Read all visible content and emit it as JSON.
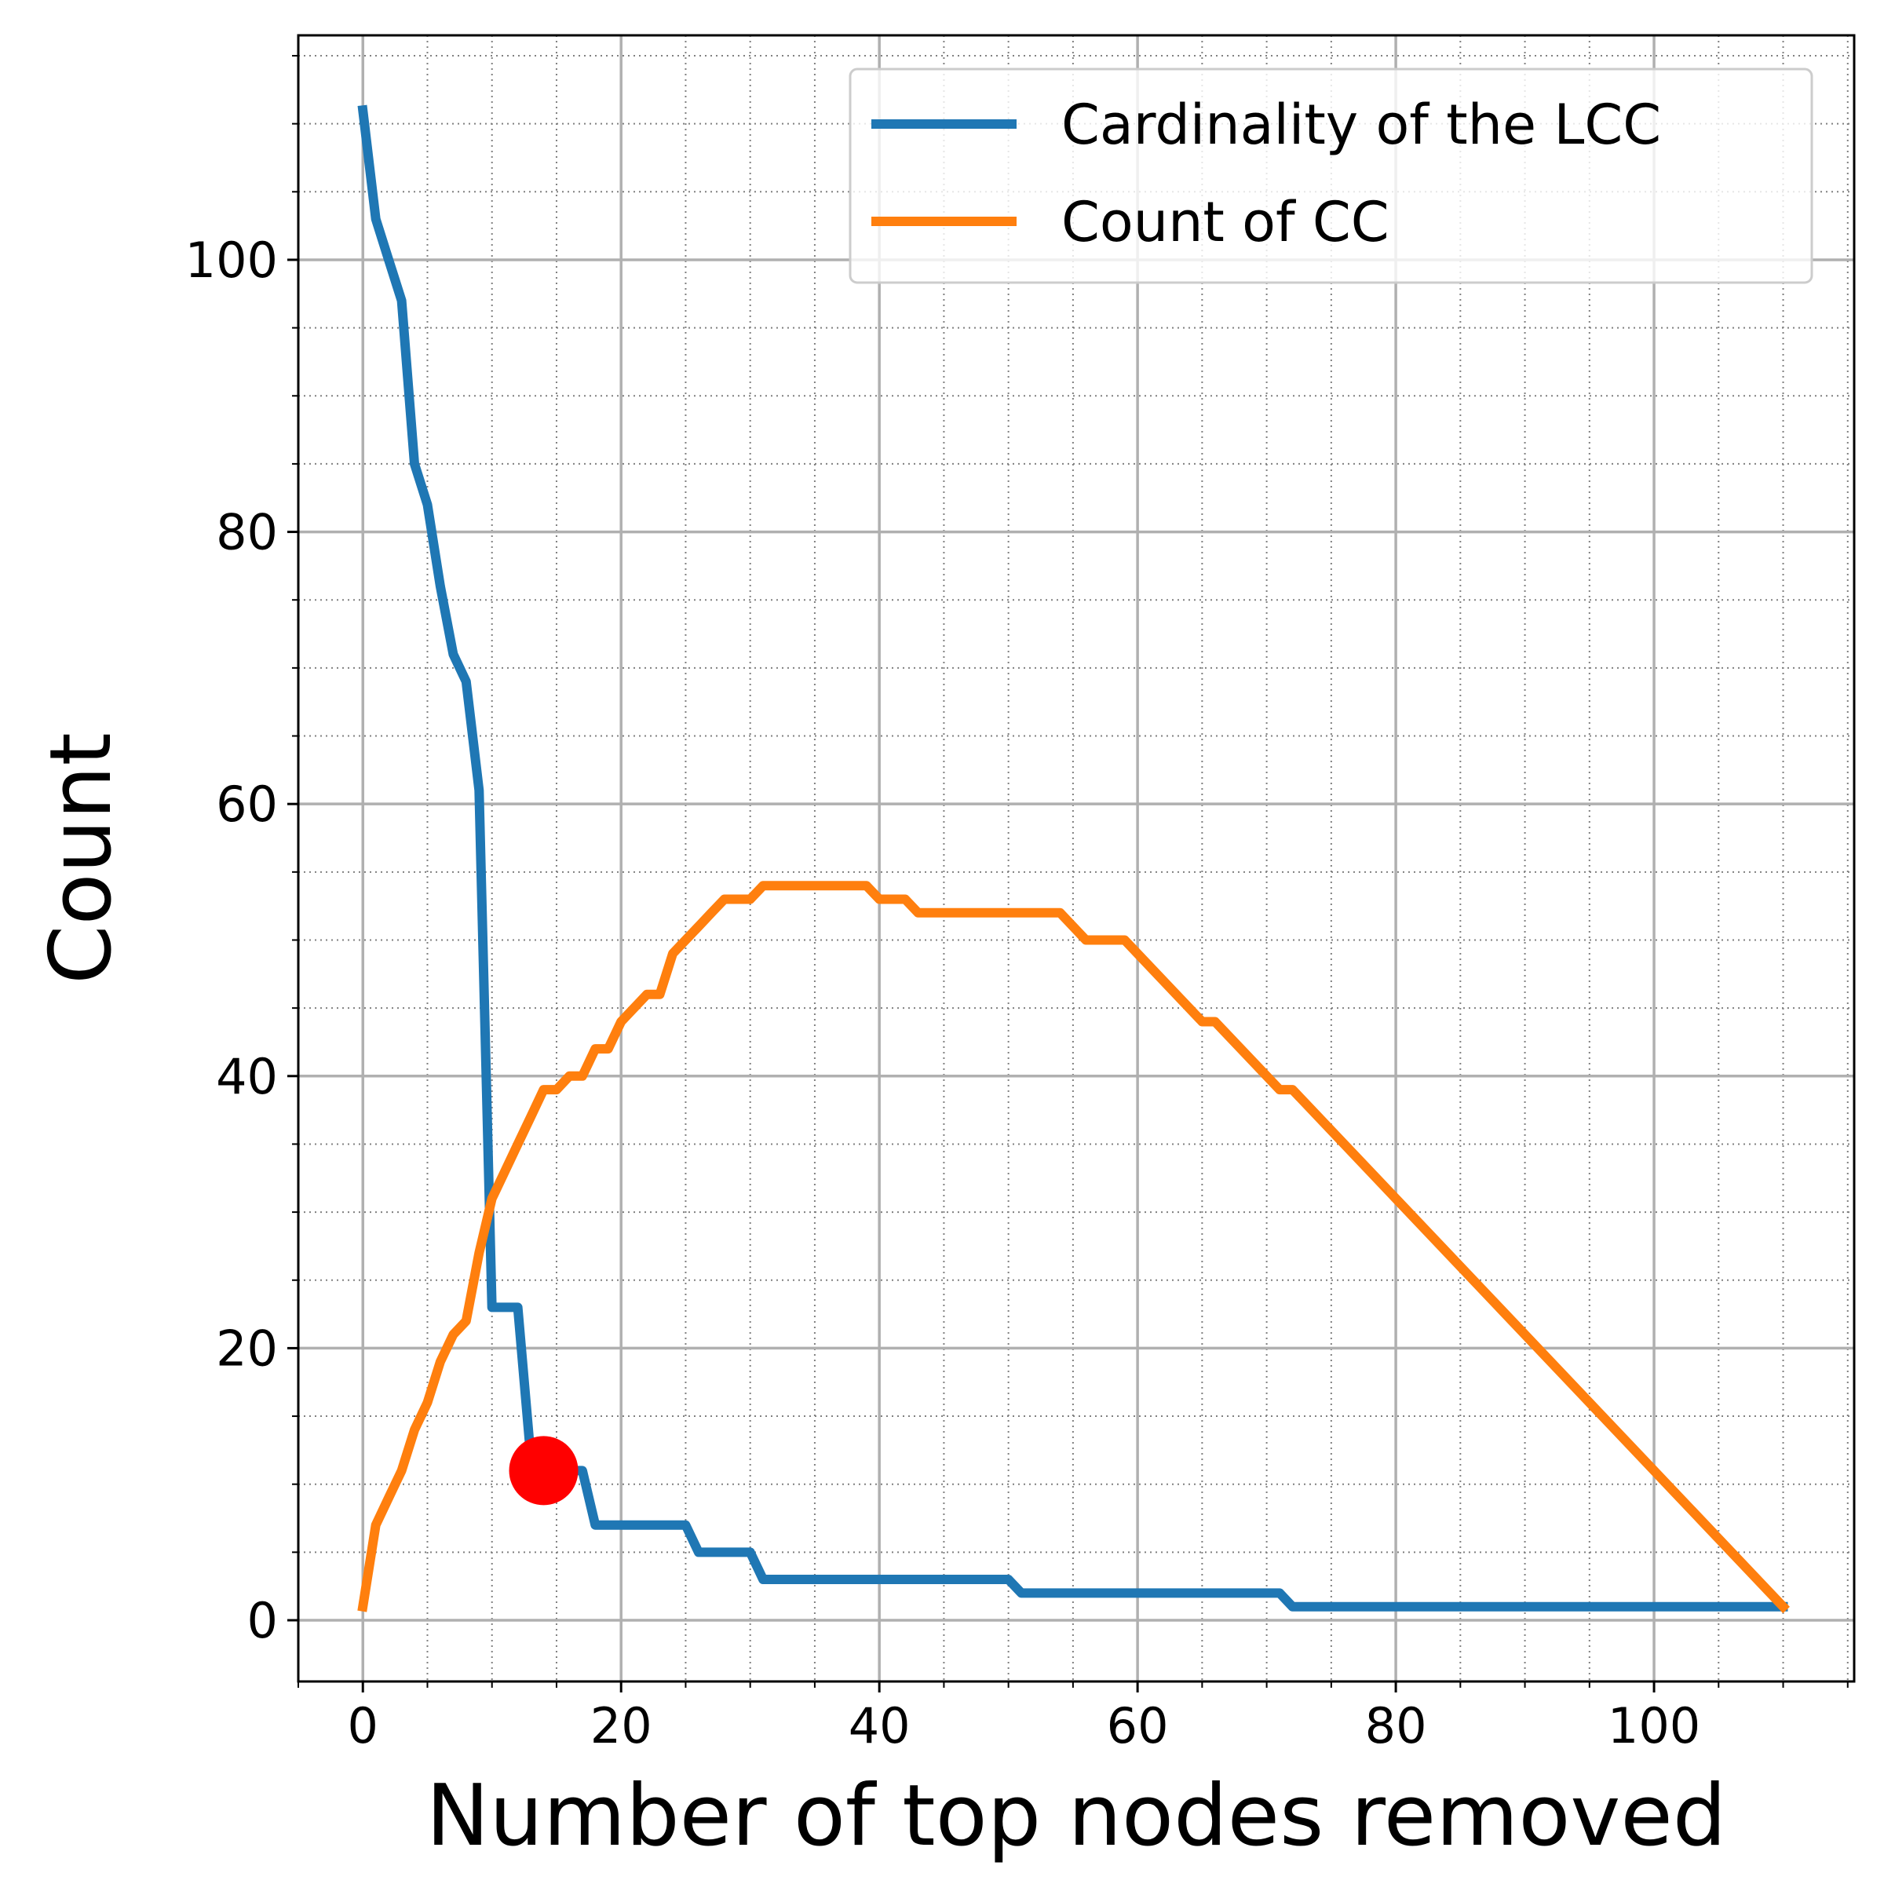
{
  "chart_data": {
    "type": "line",
    "title": "",
    "xlabel": "Number of top nodes removed",
    "ylabel": "Count",
    "xlim": [
      -5,
      115.5
    ],
    "ylim": [
      -4.5,
      116.5
    ],
    "x_ticks": [
      0,
      20,
      40,
      60,
      80,
      100
    ],
    "y_ticks": [
      0,
      20,
      40,
      60,
      80,
      100
    ],
    "x_minor_step": 5,
    "y_minor_step": 5,
    "grid": "major solid, minor dotted",
    "legend": "top-right",
    "series": [
      {
        "name": "Cardinality of the LCC",
        "color": "#1f77b4",
        "points": [
          [
            0,
            111
          ],
          [
            1,
            103
          ],
          [
            2,
            100
          ],
          [
            3,
            97
          ],
          [
            4,
            85
          ],
          [
            5,
            82
          ],
          [
            6,
            76
          ],
          [
            7,
            71
          ],
          [
            8,
            69
          ],
          [
            9,
            61
          ],
          [
            10,
            23
          ],
          [
            11,
            23
          ],
          [
            12,
            23
          ],
          [
            13,
            12
          ],
          [
            14,
            11
          ],
          [
            15,
            11
          ],
          [
            16,
            11
          ],
          [
            17,
            11
          ],
          [
            18,
            7
          ],
          [
            19,
            7
          ],
          [
            20,
            7
          ],
          [
            25,
            7
          ],
          [
            26,
            5
          ],
          [
            27,
            5
          ],
          [
            30,
            5
          ],
          [
            31,
            3
          ],
          [
            40,
            3
          ],
          [
            50,
            3
          ],
          [
            51,
            2
          ],
          [
            60,
            2
          ],
          [
            71,
            2
          ],
          [
            72,
            1
          ],
          [
            80,
            1
          ],
          [
            110,
            1
          ]
        ]
      },
      {
        "name": "Count of CC",
        "color": "#ff7f0e",
        "points": [
          [
            0,
            1
          ],
          [
            1,
            7
          ],
          [
            2,
            9
          ],
          [
            3,
            11
          ],
          [
            4,
            14
          ],
          [
            5,
            16
          ],
          [
            6,
            19
          ],
          [
            7,
            21
          ],
          [
            8,
            22
          ],
          [
            9,
            27
          ],
          [
            10,
            31
          ],
          [
            11,
            33
          ],
          [
            12,
            35
          ],
          [
            13,
            37
          ],
          [
            14,
            39
          ],
          [
            15,
            39
          ],
          [
            16,
            40
          ],
          [
            17,
            40
          ],
          [
            18,
            42
          ],
          [
            19,
            42
          ],
          [
            20,
            44
          ],
          [
            22,
            46
          ],
          [
            23,
            46
          ],
          [
            24,
            49
          ],
          [
            25,
            50
          ],
          [
            26,
            51
          ],
          [
            27,
            52
          ],
          [
            28,
            53
          ],
          [
            30,
            53
          ],
          [
            31,
            54
          ],
          [
            39,
            54
          ],
          [
            40,
            53
          ],
          [
            42,
            53
          ],
          [
            43,
            52
          ],
          [
            54,
            52
          ],
          [
            56,
            50
          ],
          [
            59,
            50
          ],
          [
            65,
            44
          ],
          [
            66,
            44
          ],
          [
            71,
            39
          ],
          [
            72,
            39
          ],
          [
            110,
            1
          ]
        ]
      }
    ],
    "highlight_point": {
      "x": 14,
      "y": 11,
      "color": "#ff0000"
    },
    "colors": {
      "axis": "#000000",
      "major_grid": "#b0b0b0",
      "minor_grid": "#808080",
      "legend_border": "#cccccc"
    }
  }
}
